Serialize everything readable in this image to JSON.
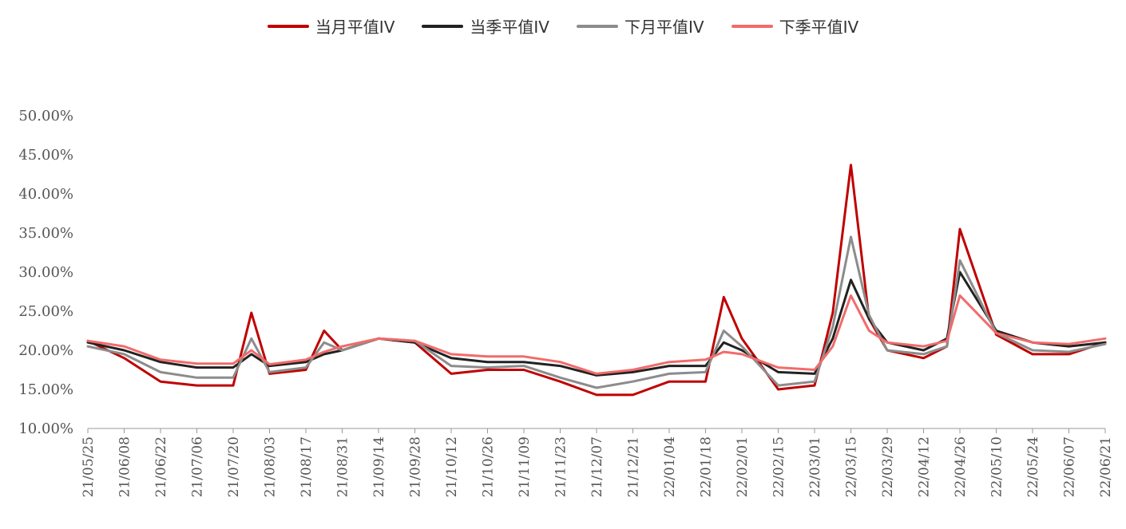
{
  "chart_data": {
    "type": "line",
    "title": "",
    "xlabel": "",
    "ylabel": "",
    "ylim": [
      0.1,
      0.5
    ],
    "yticks": [
      "10.00%",
      "15.00%",
      "20.00%",
      "25.00%",
      "30.00%",
      "35.00%",
      "40.00%",
      "45.00%",
      "50.00%"
    ],
    "xtick_labels": [
      "21/05/25",
      "21/06/08",
      "21/06/22",
      "21/07/06",
      "21/07/20",
      "21/08/03",
      "21/08/17",
      "21/08/31",
      "21/09/14",
      "21/09/28",
      "21/10/12",
      "21/10/26",
      "21/11/09",
      "21/11/23",
      "21/12/07",
      "21/12/21",
      "22/01/04",
      "22/01/18",
      "22/02/01",
      "22/02/15",
      "22/03/01",
      "22/03/15",
      "22/03/29",
      "22/04/12",
      "22/04/26",
      "22/05/10",
      "22/05/24",
      "22/06/07",
      "22/06/21"
    ],
    "x": [
      "21/05/25",
      "21/06/08",
      "21/06/22",
      "21/07/06",
      "21/07/20",
      "21/07/27",
      "21/08/03",
      "21/08/17",
      "21/08/24",
      "21/08/31",
      "21/09/14",
      "21/09/28",
      "21/10/12",
      "21/10/26",
      "21/11/09",
      "21/11/23",
      "21/12/07",
      "21/12/21",
      "22/01/04",
      "22/01/18",
      "22/01/25",
      "22/02/01",
      "22/02/15",
      "22/03/01",
      "22/03/08",
      "22/03/15",
      "22/03/22",
      "22/03/29",
      "22/04/12",
      "22/04/21",
      "22/04/26",
      "22/05/10",
      "22/05/24",
      "22/06/07",
      "22/06/21"
    ],
    "series": [
      {
        "name": "当月平值IV",
        "color": "#c00000",
        "values": [
          0.212,
          0.19,
          0.16,
          0.155,
          0.155,
          0.248,
          0.17,
          0.175,
          0.225,
          0.2,
          0.215,
          0.21,
          0.17,
          0.175,
          0.175,
          0.16,
          0.143,
          0.143,
          0.16,
          0.16,
          0.268,
          0.215,
          0.15,
          0.155,
          0.248,
          0.437,
          0.24,
          0.2,
          0.19,
          0.205,
          0.355,
          0.22,
          0.195,
          0.195,
          0.21
        ]
      },
      {
        "name": "当季平值IV",
        "color": "#222222",
        "values": [
          0.21,
          0.2,
          0.185,
          0.178,
          0.178,
          0.195,
          0.18,
          0.185,
          0.195,
          0.2,
          0.215,
          0.21,
          0.19,
          0.185,
          0.185,
          0.18,
          0.168,
          0.172,
          0.18,
          0.18,
          0.21,
          0.2,
          0.172,
          0.17,
          0.215,
          0.29,
          0.24,
          0.21,
          0.2,
          0.215,
          0.3,
          0.225,
          0.21,
          0.205,
          0.21
        ]
      },
      {
        "name": "下月平值IV",
        "color": "#8c8c8c",
        "values": [
          0.205,
          0.195,
          0.172,
          0.165,
          0.165,
          0.215,
          0.172,
          0.178,
          0.21,
          0.2,
          0.215,
          0.212,
          0.18,
          0.178,
          0.18,
          0.165,
          0.152,
          0.16,
          0.17,
          0.172,
          0.225,
          0.205,
          0.155,
          0.16,
          0.23,
          0.345,
          0.245,
          0.2,
          0.195,
          0.205,
          0.315,
          0.222,
          0.2,
          0.198,
          0.208
        ]
      },
      {
        "name": "下季平值IV",
        "color": "#f26b6b",
        "values": [
          0.212,
          0.205,
          0.188,
          0.183,
          0.183,
          0.2,
          0.182,
          0.188,
          0.198,
          0.205,
          0.215,
          0.212,
          0.195,
          0.192,
          0.192,
          0.185,
          0.17,
          0.175,
          0.185,
          0.188,
          0.198,
          0.195,
          0.178,
          0.175,
          0.205,
          0.27,
          0.225,
          0.21,
          0.205,
          0.212,
          0.27,
          0.222,
          0.21,
          0.208,
          0.215
        ]
      }
    ]
  }
}
